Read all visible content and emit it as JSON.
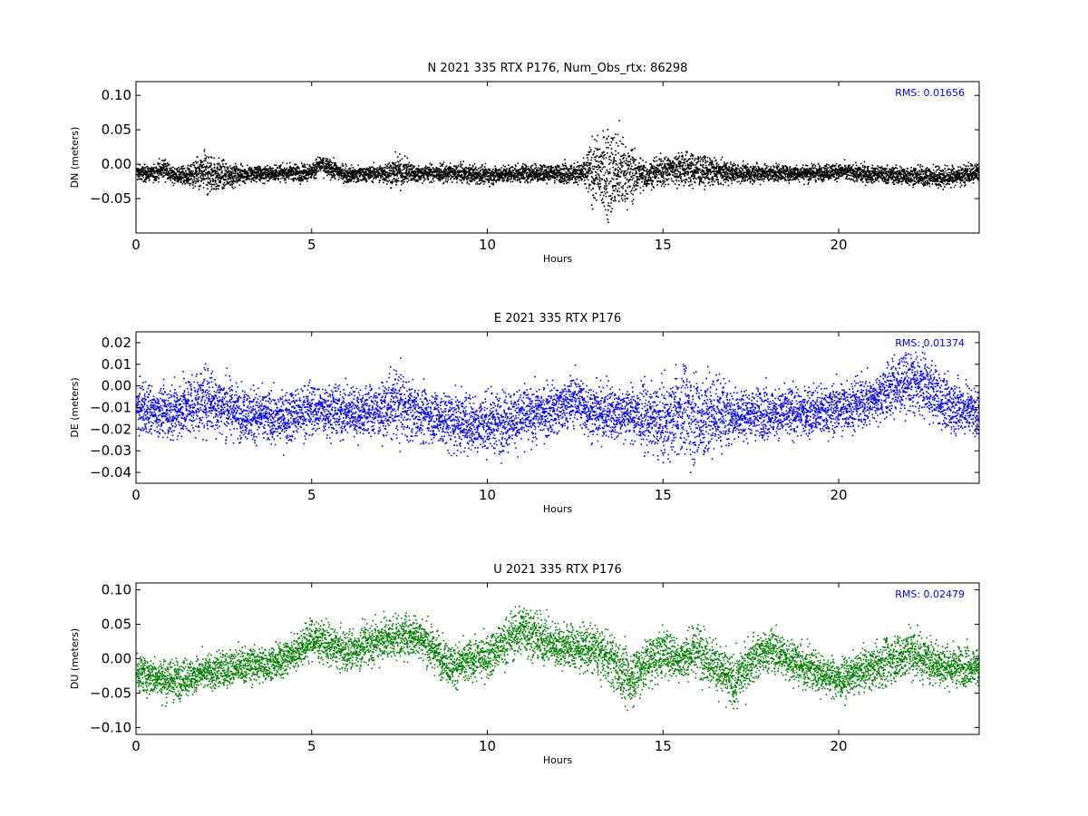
{
  "figure": {
    "background": "#ffffff"
  },
  "chart_data": [
    {
      "type": "scatter",
      "title": "N 2021 335 RTX  P176, Num_Obs_rtx: 86298",
      "xlabel": "Hours",
      "ylabel": "DN (meters)",
      "xlim": [
        0,
        24
      ],
      "ylim": [
        -0.1,
        0.12
      ],
      "xticks": [
        0,
        5,
        10,
        15,
        20
      ],
      "xtick_labels": [
        "0",
        "5",
        "10",
        "15",
        "20"
      ],
      "yticks": [
        -0.05,
        0.0,
        0.05,
        0.1
      ],
      "ytick_labels": [
        "−0.05",
        "0.00",
        "0.05",
        "0.10"
      ],
      "rms_label": "RMS:  0.01656",
      "color": "#000000",
      "rms_color": "#0000ff",
      "grid": false,
      "series": [
        {
          "x": [
            0.0,
            0.5,
            0.8,
            1.0,
            1.5,
            2.0,
            2.3,
            3.0,
            4.0,
            5.0,
            5.2,
            6.0,
            7.0,
            7.4,
            8.0,
            9.0,
            10.0,
            11.0,
            12.0,
            12.7,
            13.0,
            13.5,
            14.0,
            14.5,
            15.0,
            15.5,
            16.0,
            17.0,
            18.0,
            19.0,
            20.0,
            21.0,
            22.0,
            23.0,
            24.0
          ],
          "center": [
            -0.012,
            -0.012,
            -0.005,
            -0.015,
            -0.016,
            -0.012,
            -0.015,
            -0.014,
            -0.012,
            -0.01,
            0.0,
            -0.014,
            -0.012,
            -0.01,
            -0.012,
            -0.012,
            -0.015,
            -0.012,
            -0.012,
            -0.012,
            -0.012,
            -0.012,
            -0.012,
            -0.015,
            -0.008,
            -0.005,
            -0.008,
            -0.012,
            -0.012,
            -0.012,
            -0.01,
            -0.014,
            -0.016,
            -0.018,
            -0.012
          ],
          "spread": [
            0.015,
            0.015,
            0.018,
            0.015,
            0.018,
            0.042,
            0.03,
            0.016,
            0.015,
            0.016,
            0.018,
            0.016,
            0.016,
            0.03,
            0.016,
            0.016,
            0.017,
            0.018,
            0.017,
            0.022,
            0.06,
            0.09,
            0.055,
            0.025,
            0.03,
            0.035,
            0.03,
            0.018,
            0.016,
            0.016,
            0.016,
            0.017,
            0.018,
            0.02,
            0.018
          ]
        }
      ]
    },
    {
      "type": "scatter",
      "title": "E 2021 335 RTX  P176",
      "xlabel": "Hours",
      "ylabel": "DE (meters)",
      "xlim": [
        0,
        24
      ],
      "ylim": [
        -0.045,
        0.025
      ],
      "xticks": [
        0,
        5,
        10,
        15,
        20
      ],
      "xtick_labels": [
        "0",
        "5",
        "10",
        "15",
        "20"
      ],
      "yticks": [
        -0.04,
        -0.03,
        -0.02,
        -0.01,
        0.0,
        0.01,
        0.02
      ],
      "ytick_labels": [
        "−0.04",
        "−0.03",
        "−0.02",
        "−0.01",
        "0.00",
        "0.01",
        "0.02"
      ],
      "rms_label": "RMS:  0.01374",
      "color": "#0000ff",
      "rms_color": "#0000ff",
      "grid": false,
      "series": [
        {
          "x": [
            0.0,
            1.0,
            2.0,
            3.0,
            4.0,
            5.0,
            6.0,
            7.0,
            7.4,
            8.0,
            9.0,
            10.0,
            11.0,
            12.0,
            12.5,
            13.0,
            14.0,
            15.0,
            15.5,
            16.0,
            16.5,
            17.0,
            18.0,
            19.0,
            20.0,
            21.0,
            21.5,
            22.0,
            22.5,
            23.0,
            24.0
          ],
          "center": [
            -0.01,
            -0.012,
            -0.006,
            -0.012,
            -0.015,
            -0.01,
            -0.012,
            -0.011,
            -0.008,
            -0.012,
            -0.016,
            -0.017,
            -0.014,
            -0.01,
            -0.006,
            -0.012,
            -0.012,
            -0.017,
            -0.01,
            -0.015,
            -0.012,
            -0.013,
            -0.012,
            -0.012,
            -0.01,
            -0.006,
            0.0,
            0.002,
            0.0,
            -0.008,
            -0.012
          ],
          "spread": [
            0.015,
            0.016,
            0.02,
            0.016,
            0.015,
            0.016,
            0.015,
            0.015,
            0.022,
            0.016,
            0.018,
            0.018,
            0.017,
            0.016,
            0.016,
            0.016,
            0.016,
            0.022,
            0.025,
            0.03,
            0.025,
            0.016,
            0.015,
            0.015,
            0.016,
            0.016,
            0.018,
            0.018,
            0.018,
            0.016,
            0.016
          ]
        }
      ]
    },
    {
      "type": "scatter",
      "title": "U 2021 335 RTX  P176",
      "xlabel": "Hours",
      "ylabel": "DU (meters)",
      "xlim": [
        0,
        24
      ],
      "ylim": [
        -0.11,
        0.11
      ],
      "xticks": [
        0,
        5,
        10,
        15,
        20
      ],
      "xtick_labels": [
        "0",
        "5",
        "10",
        "15",
        "20"
      ],
      "yticks": [
        -0.1,
        -0.05,
        0.0,
        0.05,
        0.1
      ],
      "ytick_labels": [
        "−0.10",
        "−0.05",
        "0.00",
        "0.05",
        "0.10"
      ],
      "rms_label": "RMS:  0.02479",
      "color": "#008000",
      "rms_color": "#0000ff",
      "grid": false,
      "series": [
        {
          "x": [
            0.0,
            1.0,
            2.0,
            3.0,
            4.0,
            4.5,
            5.0,
            6.0,
            7.0,
            8.0,
            9.0,
            10.0,
            11.0,
            11.5,
            12.0,
            13.0,
            13.5,
            14.0,
            14.5,
            15.0,
            15.5,
            16.0,
            16.5,
            17.0,
            17.5,
            18.0,
            19.0,
            20.0,
            21.0,
            22.0,
            23.0,
            24.0
          ],
          "center": [
            -0.02,
            -0.03,
            -0.02,
            -0.01,
            -0.005,
            0.01,
            0.03,
            0.01,
            0.03,
            0.035,
            -0.01,
            0.005,
            0.045,
            0.03,
            0.02,
            0.015,
            0.0,
            -0.03,
            -0.005,
            0.01,
            0.0,
            0.015,
            -0.01,
            -0.035,
            0.0,
            0.015,
            -0.01,
            -0.03,
            -0.01,
            0.01,
            -0.01,
            -0.01
          ],
          "spread": [
            0.035,
            0.04,
            0.035,
            0.035,
            0.035,
            0.035,
            0.04,
            0.04,
            0.04,
            0.04,
            0.04,
            0.04,
            0.05,
            0.045,
            0.04,
            0.045,
            0.05,
            0.06,
            0.05,
            0.045,
            0.04,
            0.05,
            0.045,
            0.05,
            0.045,
            0.04,
            0.04,
            0.035,
            0.04,
            0.05,
            0.04,
            0.035
          ]
        }
      ]
    }
  ]
}
